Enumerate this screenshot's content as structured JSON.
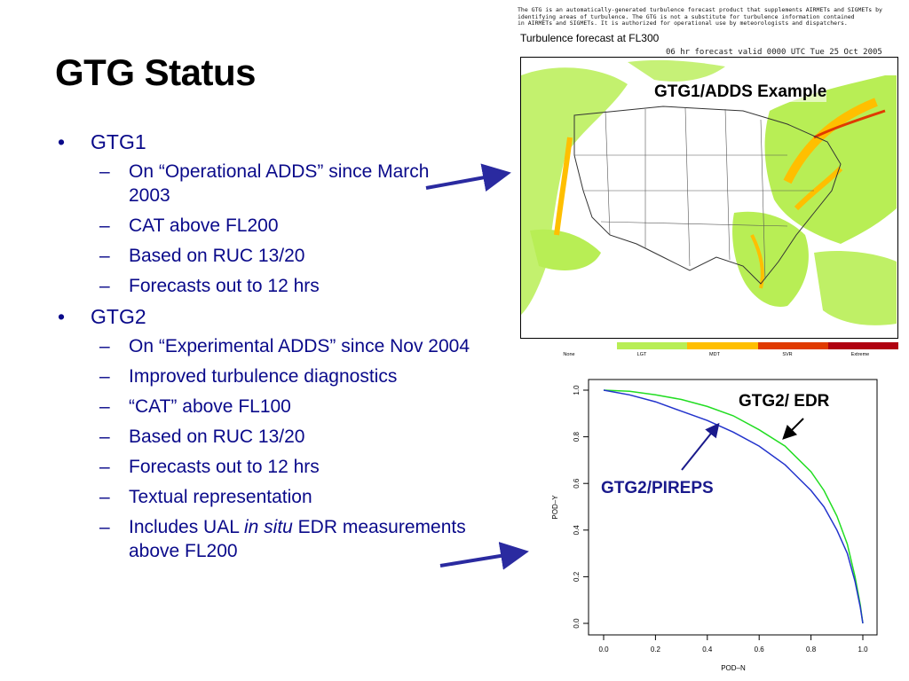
{
  "title": "GTG Status",
  "bullets": [
    {
      "label": "GTG1",
      "subs": [
        {
          "text": "On “Operational ADDS” since March 2003"
        },
        {
          "text": "CAT above FL200"
        },
        {
          "text": "Based on RUC 13/20"
        },
        {
          "text": "Forecasts out to 12 hrs"
        }
      ]
    },
    {
      "label": "GTG2",
      "subs": [
        {
          "text": "On “Experimental ADDS” since Nov 2004"
        },
        {
          "text": "Improved turbulence diagnostics"
        },
        {
          "text": "“CAT” above FL100"
        },
        {
          "text": "Based on RUC 13/20"
        },
        {
          "text": "Forecasts out to 12 hrs"
        },
        {
          "text": "Textual representation"
        },
        {
          "text_before": "Includes UAL ",
          "text_italic": "in situ",
          "text_after": " EDR measurements above FL200"
        }
      ]
    }
  ],
  "map": {
    "caption_lines": [
      "The GTG is an automatically-generated turbulence forecast product that supplements AIRMETs and SIGMETs by",
      "identifying areas of turbulence.  The GTG is not a substitute for turbulence information contained",
      "in AIRMETs and SIGMETs.  It is authorized for operational use by meteorologists and dispatchers."
    ],
    "heading": "Turbulence forecast at FL300",
    "subheading": "06 hr forecast valid 0000 UTC Tue 25 Oct 2005",
    "label": "GTG1/ADDS Example",
    "scale": [
      {
        "name": "None",
        "color": "#ffffff"
      },
      {
        "name": "LGT",
        "color": "#b8ee55"
      },
      {
        "name": "MDT",
        "color": "#ffbf00"
      },
      {
        "name": "SVR",
        "color": "#e03a00"
      },
      {
        "name": "Extreme",
        "color": "#b00010"
      }
    ]
  },
  "chart_data": {
    "type": "line",
    "xlabel": "POD–N",
    "ylabel": "POD–Y",
    "xlim": [
      0,
      1
    ],
    "ylim": [
      0,
      1
    ],
    "xticks": [
      "0.0",
      "0.2",
      "0.4",
      "0.6",
      "0.8",
      "1.0"
    ],
    "yticks": [
      "0.0",
      "0.2",
      "0.4",
      "0.6",
      "0.8",
      "1.0"
    ],
    "series": [
      {
        "name": "GTG2/ EDR",
        "color": "#22dd22",
        "x": [
          0.0,
          0.1,
          0.2,
          0.3,
          0.4,
          0.5,
          0.6,
          0.7,
          0.8,
          0.85,
          0.9,
          0.94,
          0.97,
          0.99,
          1.0
        ],
        "y": [
          1.0,
          0.995,
          0.98,
          0.96,
          0.93,
          0.89,
          0.83,
          0.76,
          0.65,
          0.57,
          0.46,
          0.34,
          0.2,
          0.08,
          0.0
        ]
      },
      {
        "name": "GTG2/PIREPS",
        "color": "#2233cc",
        "x": [
          0.0,
          0.1,
          0.2,
          0.3,
          0.4,
          0.5,
          0.6,
          0.7,
          0.8,
          0.85,
          0.9,
          0.94,
          0.97,
          0.99,
          1.0
        ],
        "y": [
          1.0,
          0.98,
          0.95,
          0.91,
          0.87,
          0.82,
          0.76,
          0.68,
          0.57,
          0.5,
          0.4,
          0.3,
          0.18,
          0.07,
          0.0
        ]
      }
    ]
  }
}
